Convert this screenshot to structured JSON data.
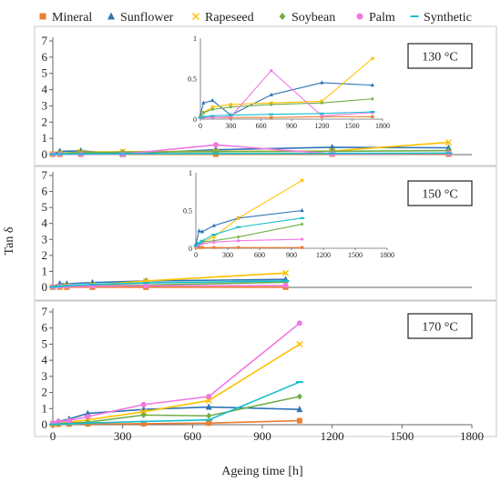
{
  "legend": [
    {
      "name": "Mineral",
      "color": "#ED7D31",
      "marker": "square"
    },
    {
      "name": "Sunflower",
      "color": "#2E75B6",
      "marker": "triangle"
    },
    {
      "name": "Rapeseed",
      "color": "#FFC000",
      "marker": "cross"
    },
    {
      "name": "Soybean",
      "color": "#70AD47",
      "marker": "diamond"
    },
    {
      "name": "Palm",
      "color": "#F277E3",
      "marker": "circle"
    },
    {
      "name": "Synthetic",
      "color": "#17BECF",
      "marker": "dash"
    }
  ],
  "xlabel": "Ageing time [h]",
  "ylabel": "Tan δ",
  "chart_data": [
    {
      "type": "line",
      "label": "130 °C",
      "xlim": [
        0,
        1800
      ],
      "ylim": [
        0,
        7
      ],
      "xticks": [],
      "yticks": [
        0,
        1,
        2,
        3,
        4,
        5,
        6,
        7
      ],
      "series": [
        {
          "name": "Mineral",
          "x": [
            0,
            30,
            120,
            300,
            700,
            1200,
            1700
          ],
          "y": [
            0.02,
            0.02,
            0.02,
            0.02,
            0.02,
            0.03,
            0.03
          ]
        },
        {
          "name": "Sunflower",
          "x": [
            0,
            30,
            120,
            300,
            700,
            1200,
            1700
          ],
          "y": [
            0.05,
            0.2,
            0.23,
            0.05,
            0.3,
            0.45,
            0.42
          ]
        },
        {
          "name": "Rapeseed",
          "x": [
            0,
            30,
            120,
            300,
            700,
            1200,
            1700
          ],
          "y": [
            0.03,
            0.08,
            0.15,
            0.18,
            0.2,
            0.22,
            0.75
          ]
        },
        {
          "name": "Soybean",
          "x": [
            0,
            30,
            120,
            300,
            700,
            1200,
            1700
          ],
          "y": [
            0.02,
            0.08,
            0.12,
            0.15,
            0.18,
            0.2,
            0.25
          ]
        },
        {
          "name": "Palm",
          "x": [
            0,
            30,
            120,
            300,
            700,
            1200,
            1700
          ],
          "y": [
            0.02,
            0.02,
            0.02,
            0.03,
            0.6,
            0.04,
            0.08
          ]
        },
        {
          "name": "Synthetic",
          "x": [
            0,
            30,
            120,
            300,
            700,
            1200,
            1700
          ],
          "y": [
            0.02,
            0.03,
            0.04,
            0.05,
            0.06,
            0.07,
            0.09
          ]
        }
      ],
      "inset": {
        "xlim": [
          0,
          1800
        ],
        "ylim": [
          0,
          1
        ],
        "xticks": [
          0,
          300,
          600,
          900,
          1200,
          1500,
          1800
        ],
        "yticks": [
          0,
          0.5,
          1
        ]
      }
    },
    {
      "type": "line",
      "label": "150 °C",
      "xlim": [
        0,
        1800
      ],
      "ylim": [
        0,
        7
      ],
      "xticks": [],
      "yticks": [
        0,
        1,
        2,
        3,
        4,
        5,
        6,
        7
      ],
      "series": [
        {
          "name": "Mineral",
          "x": [
            0,
            30,
            60,
            170,
            400,
            1000
          ],
          "y": [
            0.01,
            0.01,
            0.01,
            0.01,
            0.01,
            0.01
          ]
        },
        {
          "name": "Sunflower",
          "x": [
            0,
            30,
            60,
            170,
            400,
            1000
          ],
          "y": [
            0.05,
            0.23,
            0.22,
            0.3,
            0.4,
            0.5
          ]
        },
        {
          "name": "Rapeseed",
          "x": [
            0,
            30,
            60,
            170,
            400,
            1000
          ],
          "y": [
            0.02,
            0.05,
            0.08,
            0.15,
            0.4,
            0.9
          ]
        },
        {
          "name": "Soybean",
          "x": [
            0,
            30,
            60,
            170,
            400,
            1000
          ],
          "y": [
            0.02,
            0.05,
            0.08,
            0.1,
            0.15,
            0.32
          ]
        },
        {
          "name": "Palm",
          "x": [
            0,
            30,
            60,
            170,
            400,
            1000
          ],
          "y": [
            0.02,
            0.04,
            0.06,
            0.08,
            0.1,
            0.12
          ]
        },
        {
          "name": "Synthetic",
          "x": [
            0,
            30,
            60,
            170,
            400,
            1000
          ],
          "y": [
            0.03,
            0.07,
            0.1,
            0.18,
            0.28,
            0.4
          ]
        }
      ],
      "inset": {
        "xlim": [
          0,
          1800
        ],
        "ylim": [
          0,
          1
        ],
        "xticks": [
          0,
          300,
          600,
          900,
          1200,
          1500,
          1800
        ],
        "yticks": [
          0,
          0.5,
          1
        ]
      }
    },
    {
      "type": "line",
      "label": "170 °C",
      "xlim": [
        0,
        1800
      ],
      "ylim": [
        0,
        7
      ],
      "xticks": [
        0,
        300,
        600,
        900,
        1200,
        1500,
        1800
      ],
      "yticks": [
        0,
        1,
        2,
        3,
        4,
        5,
        6,
        7
      ],
      "series": [
        {
          "name": "Mineral",
          "x": [
            0,
            24,
            70,
            150,
            390,
            670,
            1060
          ],
          "y": [
            0.02,
            0.03,
            0.04,
            0.05,
            0.06,
            0.1,
            0.25
          ]
        },
        {
          "name": "Sunflower",
          "x": [
            0,
            24,
            70,
            150,
            390,
            670,
            1060
          ],
          "y": [
            0.1,
            0.2,
            0.35,
            0.7,
            0.95,
            1.1,
            0.95
          ]
        },
        {
          "name": "Rapeseed",
          "x": [
            0,
            24,
            70,
            150,
            390,
            670,
            1060
          ],
          "y": [
            0.05,
            0.1,
            0.15,
            0.3,
            0.8,
            1.5,
            5.0
          ]
        },
        {
          "name": "Soybean",
          "x": [
            0,
            24,
            70,
            150,
            390,
            670,
            1060
          ],
          "y": [
            0.05,
            0.08,
            0.1,
            0.15,
            0.6,
            0.55,
            1.75
          ]
        },
        {
          "name": "Palm",
          "x": [
            0,
            24,
            70,
            150,
            390,
            670,
            1060
          ],
          "y": [
            0.1,
            0.2,
            0.25,
            0.5,
            1.25,
            1.75,
            6.3
          ]
        },
        {
          "name": "Synthetic",
          "x": [
            0,
            24,
            70,
            150,
            390,
            670,
            1060
          ],
          "y": [
            0.02,
            0.03,
            0.05,
            0.1,
            0.2,
            0.3,
            2.65
          ]
        }
      ]
    }
  ]
}
